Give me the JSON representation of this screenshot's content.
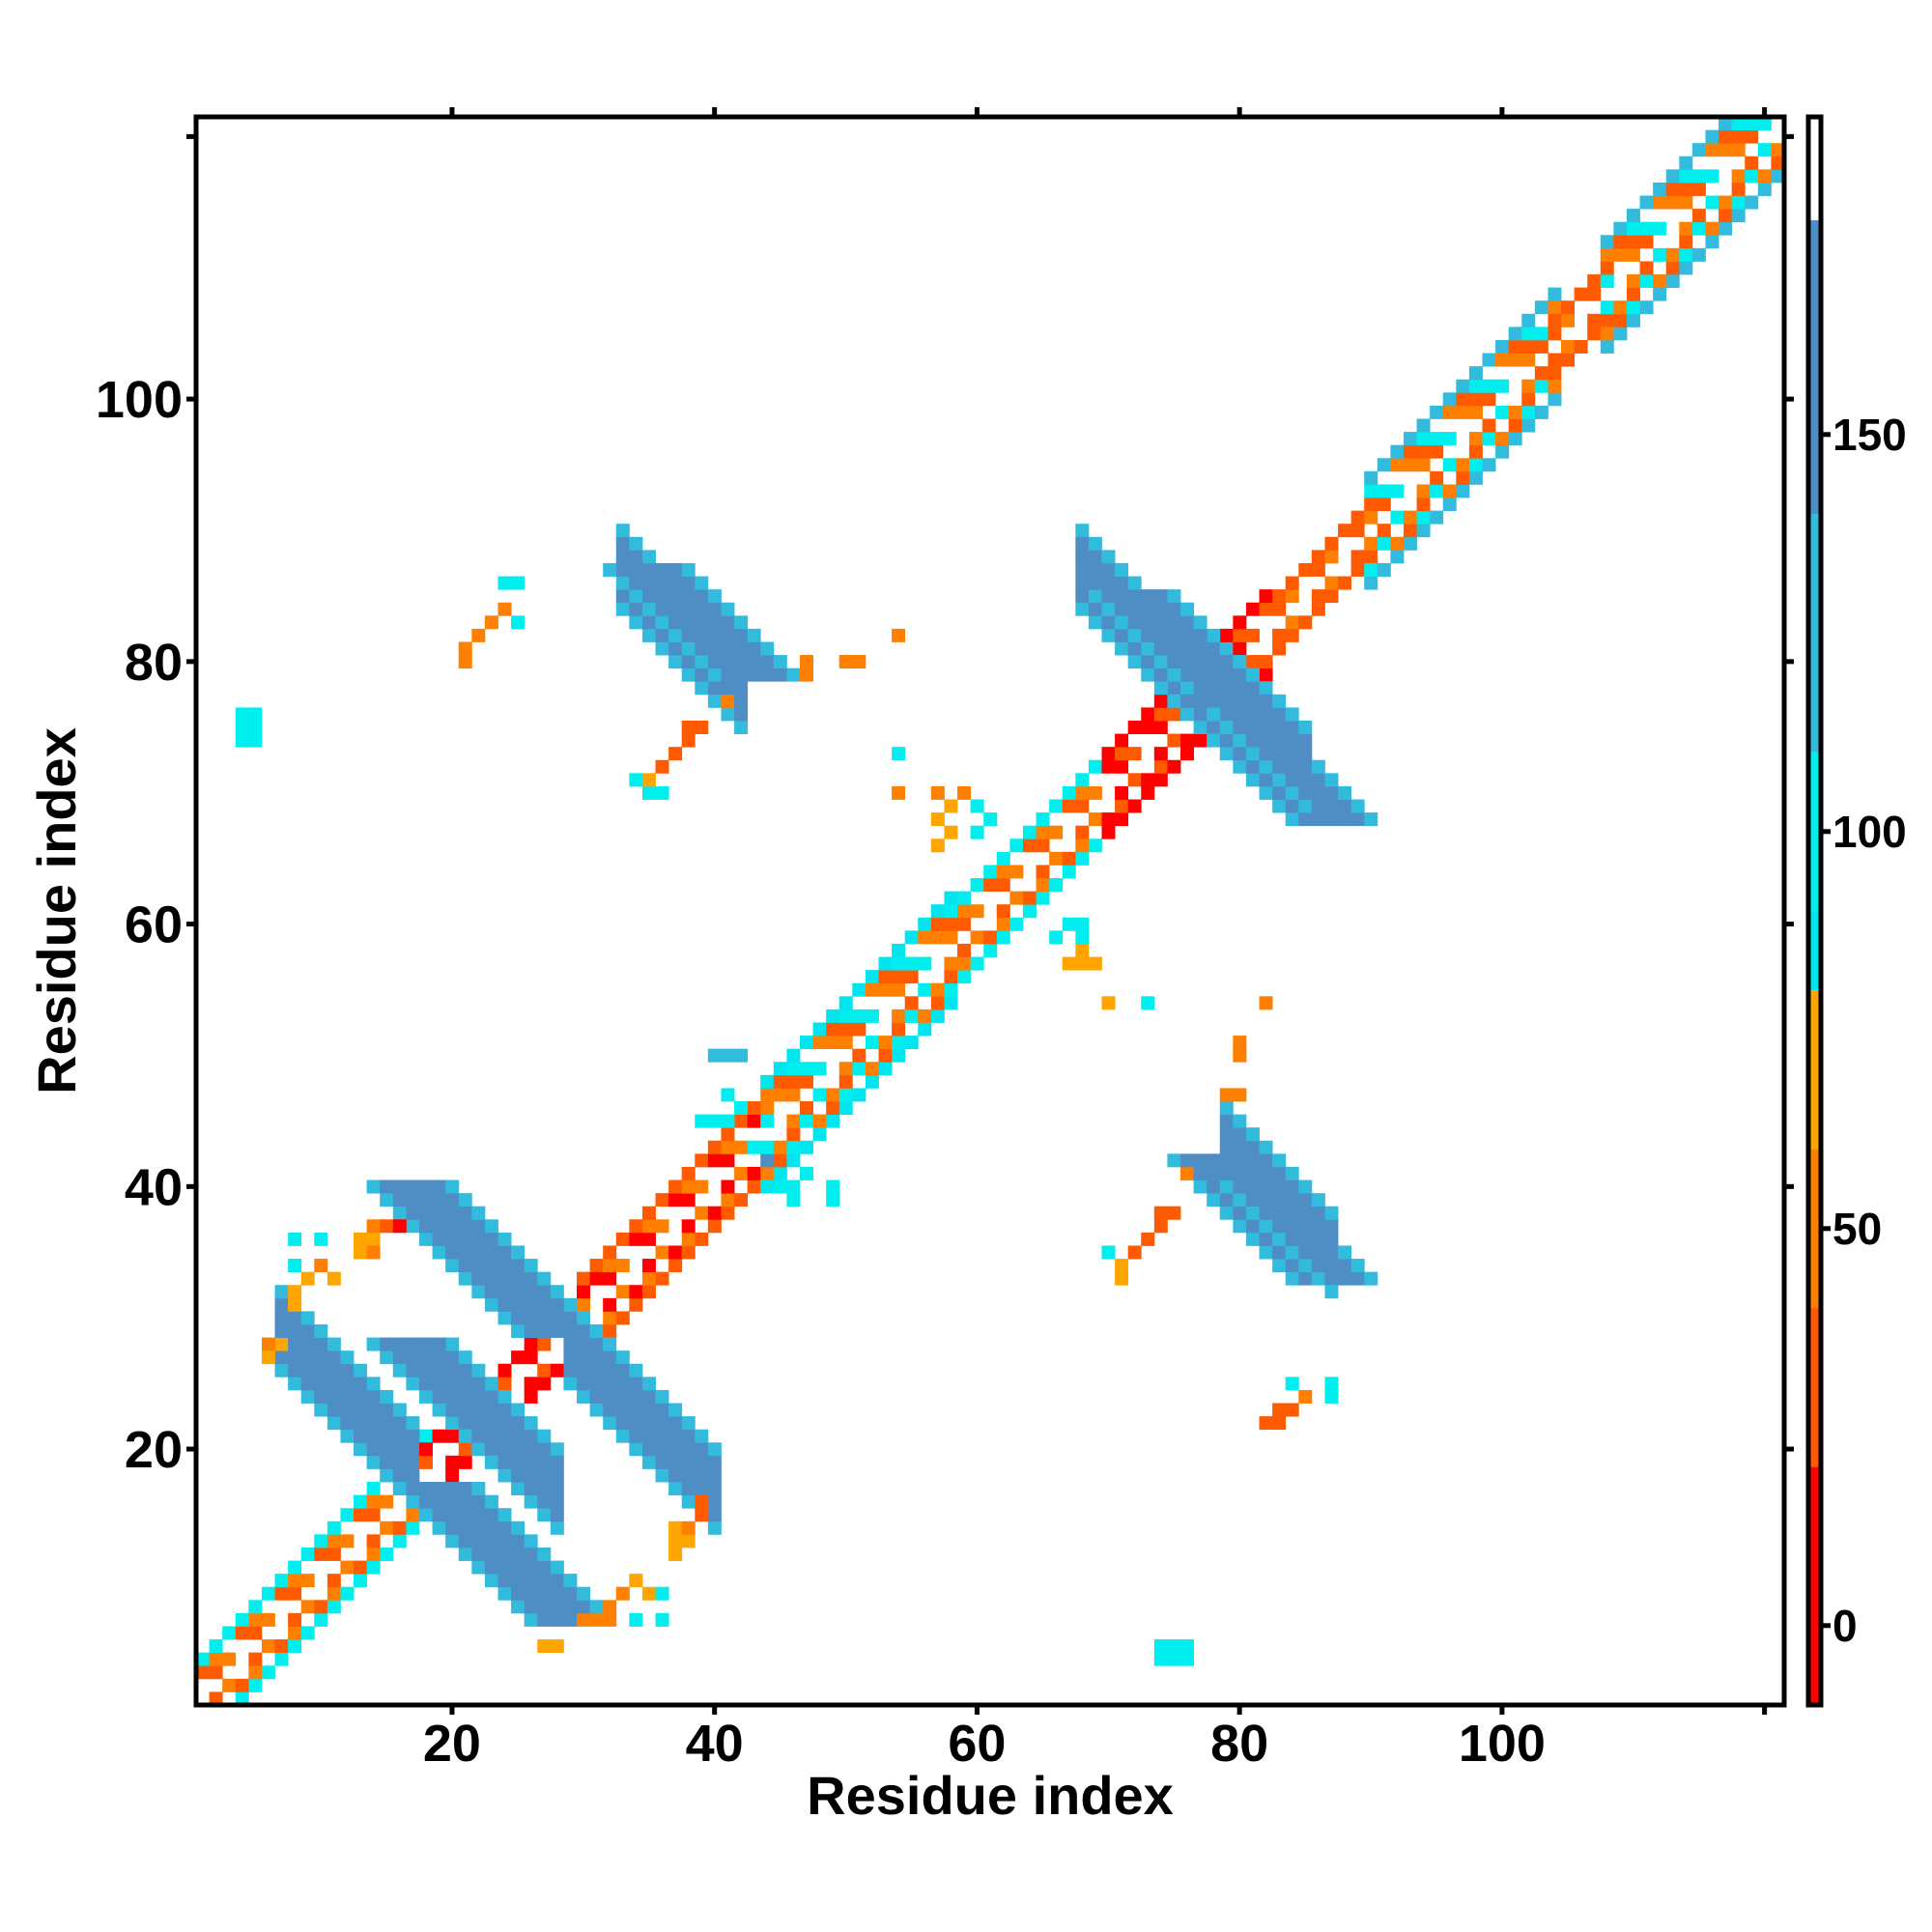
{
  "chart_data": {
    "type": "heatmap",
    "title": "",
    "xlabel": "Residue index",
    "ylabel": "Residue index",
    "xlim": [
      0.5,
      121.5
    ],
    "ylim": [
      0.5,
      121.5
    ],
    "x_ticks": [
      20,
      40,
      60,
      80,
      100
    ],
    "y_ticks": [
      20,
      40,
      60,
      80,
      100
    ],
    "grid": false,
    "colorbar": {
      "range": [
        -10,
        190
      ],
      "ticks": [
        0,
        50,
        100,
        150
      ],
      "bands": [
        {
          "from": -10,
          "to": 20,
          "color": "#ff0000"
        },
        {
          "from": 20,
          "to": 40,
          "color": "#ff5a00"
        },
        {
          "from": 40,
          "to": 60,
          "color": "#ff7f00"
        },
        {
          "from": 60,
          "to": 80,
          "color": "#ffa500"
        },
        {
          "from": 80,
          "to": 90,
          "color": "#00e5ee"
        },
        {
          "from": 90,
          "to": 110,
          "color": "#00eeee"
        },
        {
          "from": 110,
          "to": 140,
          "color": "#33bbdd"
        },
        {
          "from": 140,
          "to": 177,
          "color": "#4f8ec4"
        },
        {
          "from": 177,
          "to": 190,
          "color": "#ffffff"
        }
      ]
    },
    "diagonal_blocks": [
      {
        "i_start": 1,
        "i_end": 18,
        "width": 3,
        "color_sequence": [
          "#ff5a00",
          "#ff7f00",
          "#ffffff"
        ],
        "edge_color": "#00eeee"
      },
      {
        "i_start": 18,
        "i_end": 30,
        "width": 2,
        "color_sequence": [
          "#ff0000",
          "#ff5a00",
          "#ffffff"
        ],
        "edge_color": "#ff0000"
      },
      {
        "i_start": 30,
        "i_end": 44,
        "width": 3,
        "color_sequence": [
          "#ff0000",
          "#ff7f00",
          "#ffffff"
        ],
        "edge_color": "#ff5a00"
      },
      {
        "i_start": 44,
        "i_end": 58,
        "width": 4,
        "color_sequence": [
          "#ff5a00",
          "#00eeee",
          "#ffffff",
          "#ff7f00"
        ],
        "edge_color": "#00e5ee"
      },
      {
        "i_start": 58,
        "i_end": 70,
        "width": 3,
        "color_sequence": [
          "#ff5a00",
          "#ff7f00",
          "#ffffff"
        ],
        "edge_color": "#00eeee"
      },
      {
        "i_start": 70,
        "i_end": 82,
        "width": 3,
        "color_sequence": [
          "#ff0000",
          "#ff5a00",
          "#ffffff"
        ],
        "edge_color": "#ff0000"
      },
      {
        "i_start": 82,
        "i_end": 90,
        "width": 2,
        "color_sequence": [
          "#ff5a00",
          "#ff7f00",
          "#ffffff"
        ],
        "edge_color": "#ff5a00"
      },
      {
        "i_start": 90,
        "i_end": 104,
        "width": 4,
        "color_sequence": [
          "#ff5a00",
          "#00eeee",
          "#ffffff",
          "#ff7f00"
        ],
        "edge_color": "#33bbdd"
      },
      {
        "i_start": 104,
        "i_end": 108,
        "width": 2,
        "color_sequence": [
          "#ff5a00",
          "#ff7f00",
          "#ffffff"
        ],
        "edge_color": "#ff5a00"
      },
      {
        "i_start": 108,
        "i_end": 121,
        "width": 4,
        "color_sequence": [
          "#ff5a00",
          "#00eeee",
          "#ffffff",
          "#ff7f00"
        ],
        "edge_color": "#33bbdd"
      }
    ],
    "antiparallel_bands": [
      {
        "sum": 36,
        "i_start": 7,
        "i_end": 17,
        "width": 3,
        "color": "#4f8ec4",
        "edge_color": "#33bbdd"
      },
      {
        "sum": 45,
        "i_start": 20,
        "i_end": 28,
        "width": 3,
        "color": "#4f8ec4",
        "edge_color": "#33bbdd"
      },
      {
        "sum": 57,
        "i_start": 29,
        "i_end": 40,
        "width": 3,
        "color": "#4f8ec4",
        "edge_color": "#33bbdd"
      },
      {
        "sum": 120,
        "i_start": 33,
        "i_end": 42,
        "width": 3,
        "color": "#4f8ec4",
        "edge_color": "#33bbdd"
      },
      {
        "sum": 122,
        "i_start": 79,
        "i_end": 87,
        "width": 3,
        "color": "#4f8ec4",
        "edge_color": "#33bbdd"
      },
      {
        "sum": 155,
        "i_start": 68,
        "i_end": 77,
        "width": 3,
        "color": "#4f8ec4",
        "edge_color": "#33bbdd"
      },
      {
        "sum": 157,
        "i_start": 78,
        "i_end": 85,
        "width": 3,
        "color": "#4f8ec4",
        "edge_color": "#33bbdd"
      }
    ],
    "sparse_cells": [
      [
        4,
        74,
        "#00eeee"
      ],
      [
        5,
        74,
        "#00eeee"
      ],
      [
        4,
        75,
        "#00eeee"
      ],
      [
        5,
        75,
        "#00eeee"
      ],
      [
        4,
        76,
        "#00eeee"
      ],
      [
        5,
        76,
        "#00eeee"
      ],
      [
        21,
        81,
        "#ff7f00"
      ],
      [
        22,
        82,
        "#ff7f00"
      ],
      [
        23,
        83,
        "#ff7f00"
      ],
      [
        24,
        84,
        "#ff7f00"
      ],
      [
        25,
        83,
        "#00eeee"
      ],
      [
        24,
        86,
        "#00eeee"
      ],
      [
        25,
        86,
        "#00eeee"
      ],
      [
        21,
        80,
        "#ff7f00"
      ],
      [
        34,
        71,
        "#00eeee"
      ],
      [
        35,
        70,
        "#00eeee"
      ],
      [
        36,
        70,
        "#00eeee"
      ],
      [
        35,
        71,
        "#ffa500"
      ],
      [
        36,
        72,
        "#ff5a00"
      ],
      [
        37,
        73,
        "#ff5a00"
      ],
      [
        38,
        74,
        "#ff5a00"
      ],
      [
        39,
        75,
        "#ff5a00"
      ],
      [
        38,
        75,
        "#ff5a00"
      ],
      [
        47,
        79,
        "#ff7f00"
      ],
      [
        47,
        80,
        "#ff7f00"
      ],
      [
        50,
        80,
        "#ff7f00"
      ],
      [
        51,
        80,
        "#ff7f00"
      ],
      [
        54,
        82,
        "#ff7f00"
      ],
      [
        41,
        77,
        "#ff7f00"
      ],
      [
        54,
        73,
        "#00eeee"
      ],
      [
        54,
        70,
        "#ff7f00"
      ],
      [
        57,
        66,
        "#ffa500"
      ],
      [
        58,
        67,
        "#ffa500"
      ],
      [
        57,
        68,
        "#ffa500"
      ],
      [
        58,
        69,
        "#ffa500"
      ],
      [
        57,
        70,
        "#ff7f00"
      ],
      [
        59,
        70,
        "#ff7f00"
      ],
      [
        60,
        67,
        "#00eeee"
      ],
      [
        61,
        68,
        "#00eeee"
      ],
      [
        60,
        69,
        "#00eeee"
      ],
      [
        66,
        59,
        "#00eeee"
      ],
      [
        67,
        60,
        "#00eeee"
      ],
      [
        68,
        59,
        "#00eeee"
      ],
      [
        68,
        60,
        "#00eeee"
      ],
      [
        67,
        57,
        "#ffa500"
      ],
      [
        68,
        57,
        "#ffa500"
      ],
      [
        69,
        57,
        "#ffa500"
      ],
      [
        68,
        58,
        "#ffa500"
      ],
      [
        70,
        54,
        "#ffa500"
      ],
      [
        73,
        54,
        "#00eeee"
      ],
      [
        82,
        54,
        "#ff7f00"
      ],
      [
        80,
        50,
        "#ff7f00"
      ],
      [
        80,
        51,
        "#ff7f00"
      ],
      [
        79,
        47,
        "#ff7f00"
      ],
      [
        80,
        47,
        "#ff7f00"
      ],
      [
        43,
        43,
        "#00eeee"
      ],
      [
        44,
        42,
        "#4f8ec4"
      ],
      [
        45,
        40,
        "#00eeee"
      ],
      [
        46,
        40,
        "#00eeee"
      ],
      [
        47,
        41,
        "#00eeee"
      ],
      [
        49,
        40,
        "#00eeee"
      ],
      [
        49,
        39,
        "#00eeee"
      ],
      [
        46,
        39,
        "#00eeee"
      ],
      [
        39,
        45,
        "#00eeee"
      ],
      [
        40,
        45,
        "#00eeee"
      ],
      [
        41,
        45,
        "#00eeee"
      ],
      [
        40,
        50,
        "#33bbdd"
      ],
      [
        41,
        50,
        "#33bbdd"
      ],
      [
        42,
        50,
        "#33bbdd"
      ],
      [
        41,
        47,
        "#00eeee"
      ],
      [
        42,
        46,
        "#00eeee"
      ],
      [
        70,
        35,
        "#00eeee"
      ],
      [
        71,
        34,
        "#ffa500"
      ],
      [
        71,
        33,
        "#ffa500"
      ],
      [
        72,
        35,
        "#ff5a00"
      ],
      [
        73,
        36,
        "#ff5a00"
      ],
      [
        74,
        37,
        "#ff5a00"
      ],
      [
        75,
        38,
        "#ff5a00"
      ],
      [
        74,
        38,
        "#ff5a00"
      ],
      [
        76,
        41,
        "#ff7f00"
      ],
      [
        82,
        22,
        "#ff5a00"
      ],
      [
        83,
        22,
        "#ff5a00"
      ],
      [
        84,
        23,
        "#ff5a00"
      ],
      [
        83,
        23,
        "#ff5a00"
      ],
      [
        85,
        24,
        "#ff7f00"
      ],
      [
        84,
        25,
        "#00eeee"
      ],
      [
        87,
        25,
        "#00eeee"
      ],
      [
        87,
        24,
        "#00eeee"
      ],
      [
        74,
        4,
        "#00eeee"
      ],
      [
        75,
        4,
        "#00eeee"
      ],
      [
        76,
        4,
        "#00eeee"
      ],
      [
        74,
        5,
        "#00eeee"
      ],
      [
        75,
        5,
        "#00eeee"
      ],
      [
        76,
        5,
        "#00eeee"
      ],
      [
        37,
        13,
        "#ffa500"
      ],
      [
        38,
        13,
        "#ffa500"
      ],
      [
        37,
        14,
        "#ffa500"
      ],
      [
        38,
        14,
        "#ff7f00"
      ],
      [
        39,
        16,
        "#ff5a00"
      ],
      [
        39,
        15,
        "#ff5a00"
      ],
      [
        37,
        12,
        "#ffa500"
      ],
      [
        32,
        8,
        "#ff7f00"
      ],
      [
        33,
        9,
        "#ff7f00"
      ],
      [
        34,
        10,
        "#ffa500"
      ],
      [
        35,
        9,
        "#ffa500"
      ],
      [
        36,
        7,
        "#00eeee"
      ],
      [
        36,
        9,
        "#00eeee"
      ],
      [
        31,
        7,
        "#ff7f00"
      ],
      [
        32,
        7,
        "#ff7f00"
      ],
      [
        30,
        7,
        "#ff7f00"
      ],
      [
        34,
        7,
        "#00eeee"
      ],
      [
        27,
        5,
        "#ffa500"
      ],
      [
        28,
        5,
        "#ffa500"
      ],
      [
        8,
        34,
        "#00eeee"
      ],
      [
        8,
        32,
        "#ffa500"
      ],
      [
        8,
        31,
        "#ffa500"
      ],
      [
        9,
        33,
        "#ffa500"
      ],
      [
        10,
        34,
        "#ff7f00"
      ],
      [
        11,
        33,
        "#ffa500"
      ],
      [
        10,
        36,
        "#00eeee"
      ],
      [
        8,
        36,
        "#00eeee"
      ],
      [
        13,
        35,
        "#ffa500"
      ],
      [
        13,
        36,
        "#ffa500"
      ],
      [
        14,
        36,
        "#ffa500"
      ],
      [
        14,
        37,
        "#ff7f00"
      ],
      [
        15,
        37,
        "#ff5a00"
      ],
      [
        16,
        37,
        "#ff0000"
      ],
      [
        14,
        35,
        "#ff7f00"
      ],
      [
        6,
        28,
        "#ff7f00"
      ],
      [
        6,
        27,
        "#ffa500"
      ],
      [
        7,
        28,
        "#ffa500"
      ]
    ]
  }
}
